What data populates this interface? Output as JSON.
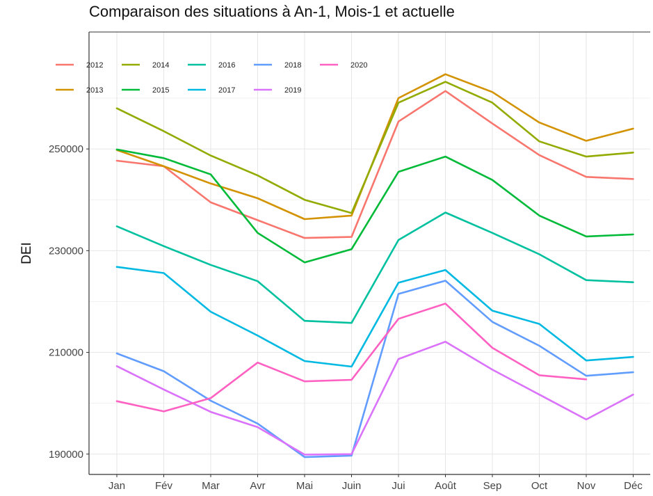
{
  "chart_data": {
    "type": "line",
    "title": "Comparaison des situations à An-1, Mois-1 et actuelle",
    "xlabel": "",
    "ylabel": "DEI",
    "categories": [
      "Jan",
      "Fév",
      "Mar",
      "Avr",
      "Mai",
      "Juin",
      "Jui",
      "Août",
      "Sep",
      "Oct",
      "Nov",
      "Déc"
    ],
    "ylim": [
      186000,
      273000
    ],
    "yticks": [
      190000,
      210000,
      230000,
      250000
    ],
    "ytick_labels": [
      "190000",
      "210000",
      "230000",
      "250000"
    ],
    "grid": true,
    "legend_position": "top-left",
    "series": [
      {
        "name": "2012",
        "color": "#F8766D",
        "values": [
          247700,
          246600,
          239500,
          236000,
          232500,
          232700,
          255400,
          261400,
          255000,
          248800,
          244500,
          244100
        ]
      },
      {
        "name": "2013",
        "color": "#D39200",
        "values": [
          249800,
          246600,
          243200,
          240300,
          236200,
          236900,
          260000,
          264700,
          261200,
          255200,
          251600,
          254000
        ]
      },
      {
        "name": "2014",
        "color": "#93AA00",
        "values": [
          258000,
          253500,
          248700,
          244800,
          240000,
          237400,
          259100,
          263200,
          259100,
          251500,
          248500,
          249300
        ]
      },
      {
        "name": "2015",
        "color": "#00BA38",
        "values": [
          249900,
          248200,
          245000,
          233500,
          227700,
          230300,
          245500,
          248500,
          243900,
          236900,
          232800,
          233200
        ]
      },
      {
        "name": "2016",
        "color": "#00C19F",
        "values": [
          234800,
          230900,
          227200,
          224000,
          216200,
          215800,
          232100,
          237500,
          233500,
          229300,
          224200,
          223800
        ]
      },
      {
        "name": "2017",
        "color": "#00B9E3",
        "values": [
          226800,
          225600,
          218000,
          213300,
          208300,
          207200,
          223700,
          226200,
          218200,
          215600,
          208400,
          209100
        ]
      },
      {
        "name": "2018",
        "color": "#619CFF",
        "values": [
          209800,
          206300,
          200500,
          196000,
          189400,
          189700,
          221500,
          224100,
          216000,
          211300,
          205400,
          206100
        ]
      },
      {
        "name": "2019",
        "color": "#DB72FB",
        "values": [
          207300,
          202700,
          198300,
          195300,
          189900,
          190000,
          208700,
          212100,
          206600,
          201700,
          196800,
          201700
        ]
      },
      {
        "name": "2020",
        "color": "#FF61C3",
        "values": [
          200400,
          198400,
          201000,
          208000,
          204300,
          204600,
          216600,
          219600,
          210900,
          205500,
          204700,
          null
        ]
      }
    ]
  }
}
